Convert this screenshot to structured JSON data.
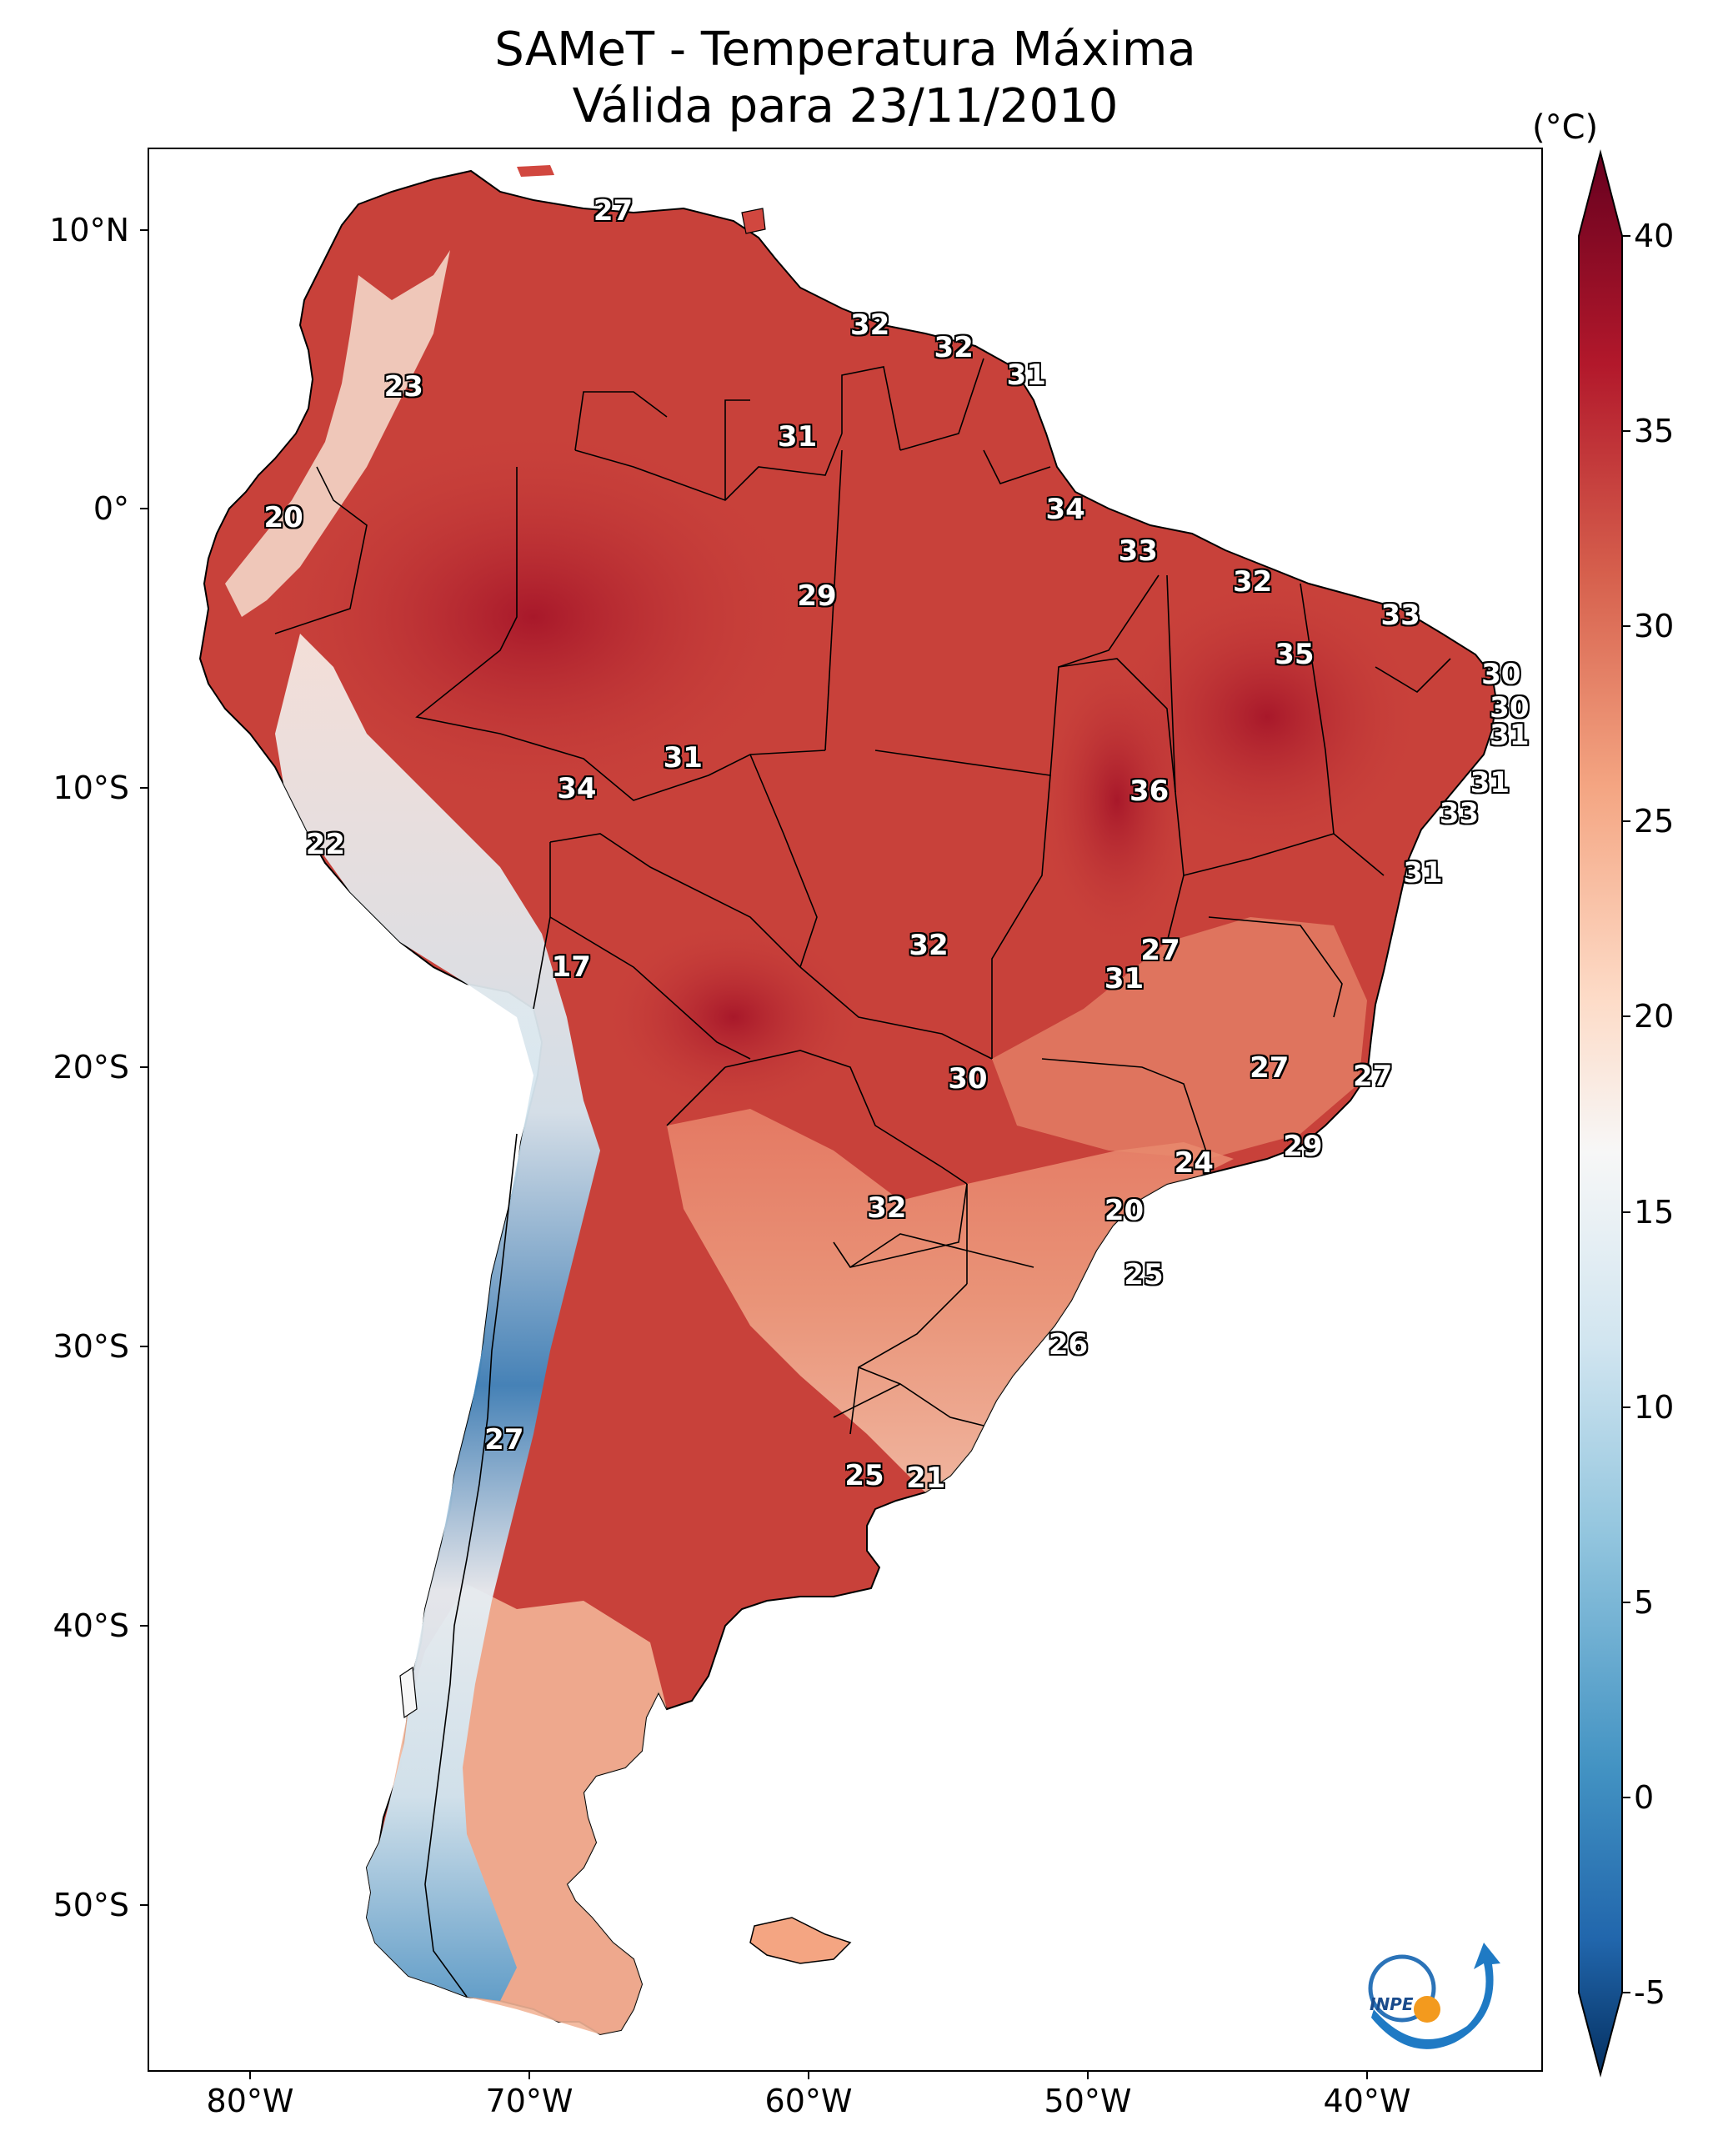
{
  "title": {
    "line1": "SAMeT - Temperatura Máxima",
    "line2": "Válida para 23/11/2010"
  },
  "colorbar": {
    "unit": "(°C)",
    "ticks": [
      "40",
      "35",
      "30",
      "25",
      "20",
      "15",
      "10",
      "5",
      "0",
      "-5"
    ],
    "colors": {
      "top": "#67001f",
      "hot": "#b2182b",
      "warm": "#d6604d",
      "mild": "#f4a582",
      "light": "#fddbc7",
      "neutral": "#f7f7f7",
      "cool": "#d1e5f0",
      "cold": "#92c5de",
      "colder": "#4393c3",
      "bottom": "#053061"
    }
  },
  "axes": {
    "lat_labels": [
      "10°N",
      "0°",
      "10°S",
      "20°S",
      "30°S",
      "40°S",
      "50°S"
    ],
    "lon_labels": [
      "80°W",
      "70°W",
      "60°W",
      "50°W",
      "40°W"
    ]
  },
  "value_labels": [
    {
      "text": "27",
      "lon": -67.0,
      "lat": 10.7
    },
    {
      "text": "32",
      "lon": -57.8,
      "lat": 6.6
    },
    {
      "text": "32",
      "lon": -54.8,
      "lat": 5.8
    },
    {
      "text": "31",
      "lon": -52.2,
      "lat": 4.8
    },
    {
      "text": "23",
      "lon": -74.5,
      "lat": 4.4
    },
    {
      "text": "31",
      "lon": -60.4,
      "lat": 2.6
    },
    {
      "text": "34",
      "lon": -50.8,
      "lat": 0.0
    },
    {
      "text": "20",
      "lon": -78.8,
      "lat": -0.3
    },
    {
      "text": "33",
      "lon": -48.2,
      "lat": -1.5
    },
    {
      "text": "32",
      "lon": -44.1,
      "lat": -2.6
    },
    {
      "text": "29",
      "lon": -59.7,
      "lat": -3.1
    },
    {
      "text": "33",
      "lon": -38.8,
      "lat": -3.8
    },
    {
      "text": "35",
      "lon": -42.6,
      "lat": -5.2
    },
    {
      "text": "30",
      "lon": -35.2,
      "lat": -5.9
    },
    {
      "text": "30",
      "lon": -34.9,
      "lat": -7.1
    },
    {
      "text": "31",
      "lon": -34.9,
      "lat": -8.1
    },
    {
      "text": "31",
      "lon": -64.5,
      "lat": -8.9
    },
    {
      "text": "31",
      "lon": -35.6,
      "lat": -9.8
    },
    {
      "text": "34",
      "lon": -68.3,
      "lat": -10.0
    },
    {
      "text": "36",
      "lon": -47.8,
      "lat": -10.1
    },
    {
      "text": "33",
      "lon": -36.7,
      "lat": -10.9
    },
    {
      "text": "22",
      "lon": -77.3,
      "lat": -12.0
    },
    {
      "text": "31",
      "lon": -38.0,
      "lat": -13.0
    },
    {
      "text": "32",
      "lon": -55.7,
      "lat": -15.6
    },
    {
      "text": "27",
      "lon": -47.4,
      "lat": -15.8
    },
    {
      "text": "17",
      "lon": -68.5,
      "lat": -16.4
    },
    {
      "text": "31",
      "lon": -48.7,
      "lat": -16.8
    },
    {
      "text": "27",
      "lon": -43.5,
      "lat": -20.0
    },
    {
      "text": "30",
      "lon": -54.3,
      "lat": -20.4
    },
    {
      "text": "27",
      "lon": -39.8,
      "lat": -20.3
    },
    {
      "text": "29",
      "lon": -42.3,
      "lat": -22.8
    },
    {
      "text": "24",
      "lon": -46.2,
      "lat": -23.4
    },
    {
      "text": "32",
      "lon": -57.2,
      "lat": -25.0
    },
    {
      "text": "20",
      "lon": -48.7,
      "lat": -25.1
    },
    {
      "text": "25",
      "lon": -48.0,
      "lat": -27.4
    },
    {
      "text": "26",
      "lon": -50.7,
      "lat": -29.9
    },
    {
      "text": "27",
      "lon": -70.9,
      "lat": -33.3
    },
    {
      "text": "25",
      "lon": -58.0,
      "lat": -34.6
    },
    {
      "text": "21",
      "lon": -55.8,
      "lat": -34.7
    }
  ],
  "logo": {
    "text": "INPE"
  }
}
